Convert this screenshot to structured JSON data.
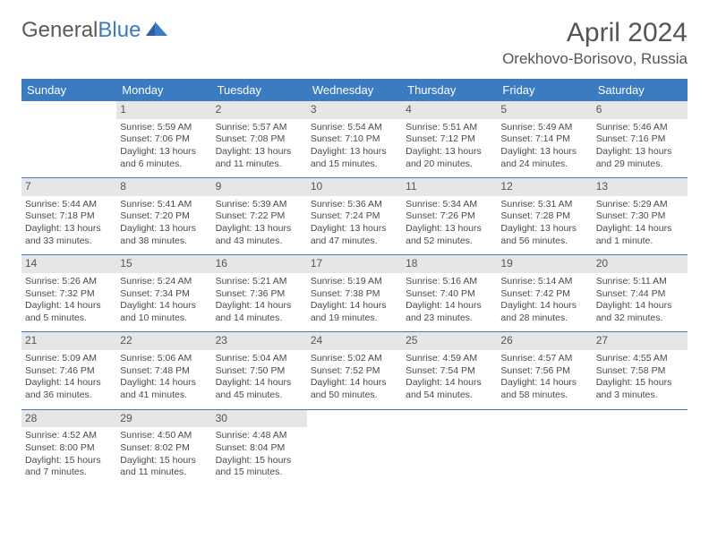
{
  "brand": {
    "word1": "General",
    "word2": "Blue"
  },
  "header": {
    "month": "April 2024",
    "location": "Orekhovo-Borisovo, Russia"
  },
  "weekday_labels": [
    "Sunday",
    "Monday",
    "Tuesday",
    "Wednesday",
    "Thursday",
    "Friday",
    "Saturday"
  ],
  "colors": {
    "header_bg": "#3b7bbf",
    "header_text": "#ffffff",
    "rule": "#3b7bbf",
    "daynum_bg": "#e6e6e6",
    "body_text": "#4a4a4a",
    "page_bg": "#ffffff"
  },
  "calendar": {
    "type": "table",
    "columns": 7,
    "rows": 5,
    "start_weekday_index": 1,
    "days": [
      {
        "n": 1,
        "sunrise": "5:59 AM",
        "sunset": "7:06 PM",
        "daylight": "13 hours and 6 minutes."
      },
      {
        "n": 2,
        "sunrise": "5:57 AM",
        "sunset": "7:08 PM",
        "daylight": "13 hours and 11 minutes."
      },
      {
        "n": 3,
        "sunrise": "5:54 AM",
        "sunset": "7:10 PM",
        "daylight": "13 hours and 15 minutes."
      },
      {
        "n": 4,
        "sunrise": "5:51 AM",
        "sunset": "7:12 PM",
        "daylight": "13 hours and 20 minutes."
      },
      {
        "n": 5,
        "sunrise": "5:49 AM",
        "sunset": "7:14 PM",
        "daylight": "13 hours and 24 minutes."
      },
      {
        "n": 6,
        "sunrise": "5:46 AM",
        "sunset": "7:16 PM",
        "daylight": "13 hours and 29 minutes."
      },
      {
        "n": 7,
        "sunrise": "5:44 AM",
        "sunset": "7:18 PM",
        "daylight": "13 hours and 33 minutes."
      },
      {
        "n": 8,
        "sunrise": "5:41 AM",
        "sunset": "7:20 PM",
        "daylight": "13 hours and 38 minutes."
      },
      {
        "n": 9,
        "sunrise": "5:39 AM",
        "sunset": "7:22 PM",
        "daylight": "13 hours and 43 minutes."
      },
      {
        "n": 10,
        "sunrise": "5:36 AM",
        "sunset": "7:24 PM",
        "daylight": "13 hours and 47 minutes."
      },
      {
        "n": 11,
        "sunrise": "5:34 AM",
        "sunset": "7:26 PM",
        "daylight": "13 hours and 52 minutes."
      },
      {
        "n": 12,
        "sunrise": "5:31 AM",
        "sunset": "7:28 PM",
        "daylight": "13 hours and 56 minutes."
      },
      {
        "n": 13,
        "sunrise": "5:29 AM",
        "sunset": "7:30 PM",
        "daylight": "14 hours and 1 minute."
      },
      {
        "n": 14,
        "sunrise": "5:26 AM",
        "sunset": "7:32 PM",
        "daylight": "14 hours and 5 minutes."
      },
      {
        "n": 15,
        "sunrise": "5:24 AM",
        "sunset": "7:34 PM",
        "daylight": "14 hours and 10 minutes."
      },
      {
        "n": 16,
        "sunrise": "5:21 AM",
        "sunset": "7:36 PM",
        "daylight": "14 hours and 14 minutes."
      },
      {
        "n": 17,
        "sunrise": "5:19 AM",
        "sunset": "7:38 PM",
        "daylight": "14 hours and 19 minutes."
      },
      {
        "n": 18,
        "sunrise": "5:16 AM",
        "sunset": "7:40 PM",
        "daylight": "14 hours and 23 minutes."
      },
      {
        "n": 19,
        "sunrise": "5:14 AM",
        "sunset": "7:42 PM",
        "daylight": "14 hours and 28 minutes."
      },
      {
        "n": 20,
        "sunrise": "5:11 AM",
        "sunset": "7:44 PM",
        "daylight": "14 hours and 32 minutes."
      },
      {
        "n": 21,
        "sunrise": "5:09 AM",
        "sunset": "7:46 PM",
        "daylight": "14 hours and 36 minutes."
      },
      {
        "n": 22,
        "sunrise": "5:06 AM",
        "sunset": "7:48 PM",
        "daylight": "14 hours and 41 minutes."
      },
      {
        "n": 23,
        "sunrise": "5:04 AM",
        "sunset": "7:50 PM",
        "daylight": "14 hours and 45 minutes."
      },
      {
        "n": 24,
        "sunrise": "5:02 AM",
        "sunset": "7:52 PM",
        "daylight": "14 hours and 50 minutes."
      },
      {
        "n": 25,
        "sunrise": "4:59 AM",
        "sunset": "7:54 PM",
        "daylight": "14 hours and 54 minutes."
      },
      {
        "n": 26,
        "sunrise": "4:57 AM",
        "sunset": "7:56 PM",
        "daylight": "14 hours and 58 minutes."
      },
      {
        "n": 27,
        "sunrise": "4:55 AM",
        "sunset": "7:58 PM",
        "daylight": "15 hours and 3 minutes."
      },
      {
        "n": 28,
        "sunrise": "4:52 AM",
        "sunset": "8:00 PM",
        "daylight": "15 hours and 7 minutes."
      },
      {
        "n": 29,
        "sunrise": "4:50 AM",
        "sunset": "8:02 PM",
        "daylight": "15 hours and 11 minutes."
      },
      {
        "n": 30,
        "sunrise": "4:48 AM",
        "sunset": "8:04 PM",
        "daylight": "15 hours and 15 minutes."
      }
    ],
    "labels": {
      "sunrise": "Sunrise:",
      "sunset": "Sunset:",
      "daylight": "Daylight:"
    }
  }
}
